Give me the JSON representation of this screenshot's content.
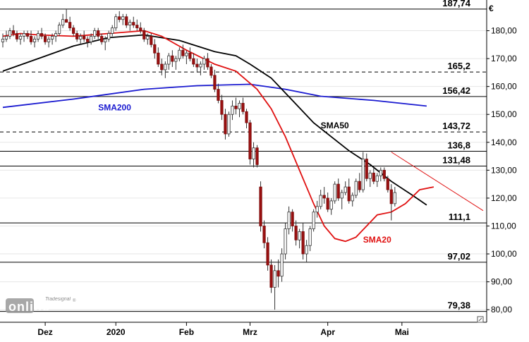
{
  "chart_data": {
    "type": "candlestick",
    "currency_label": "€",
    "y_axis": {
      "ticks": [
        {
          "v": 80,
          "label": "80,00"
        },
        {
          "v": 90,
          "label": "90,00"
        },
        {
          "v": 100,
          "label": "100,00"
        },
        {
          "v": 110,
          "label": "110,00"
        },
        {
          "v": 120,
          "label": "120,00"
        },
        {
          "v": 130,
          "label": "130,00"
        },
        {
          "v": 140,
          "label": "140,00"
        },
        {
          "v": 150,
          "label": "150,00"
        },
        {
          "v": 160,
          "label": "160,00"
        },
        {
          "v": 170,
          "label": "170,00"
        },
        {
          "v": 180,
          "label": "180,00"
        }
      ],
      "range": [
        75.5,
        191.0
      ]
    },
    "x_axis": {
      "labels": [
        {
          "t": 12,
          "label": "Dez"
        },
        {
          "t": 32,
          "label": "2020"
        },
        {
          "t": 52,
          "label": "Feb"
        },
        {
          "t": 70,
          "label": "Mrz"
        },
        {
          "t": 92,
          "label": "Apr"
        },
        {
          "t": 113,
          "label": "Mai"
        }
      ],
      "range": [
        0,
        136
      ]
    },
    "levels": [
      {
        "value": 187.74,
        "label": "187,74",
        "style": "solid"
      },
      {
        "value": 165.2,
        "label": "165,2",
        "style": "dashed"
      },
      {
        "value": 156.42,
        "label": "156,42",
        "style": "solid"
      },
      {
        "value": 143.72,
        "label": "143,72",
        "style": "dashed"
      },
      {
        "value": 136.8,
        "label": "136,8",
        "style": "solid"
      },
      {
        "value": 131.48,
        "label": "131,48",
        "style": "solid"
      },
      {
        "value": 111.1,
        "label": "111,1",
        "style": "solid"
      },
      {
        "value": 97.02,
        "label": "97,02",
        "style": "solid"
      },
      {
        "value": 79.38,
        "label": "79,38",
        "style": "solid"
      }
    ],
    "series": [
      {
        "name": "SMA200",
        "color": "#1a1ad0",
        "points": [
          [
            0,
            152.5
          ],
          [
            20,
            155.5
          ],
          [
            40,
            159
          ],
          [
            55,
            160.3
          ],
          [
            70,
            160.8
          ],
          [
            80,
            159
          ],
          [
            90,
            156.5
          ],
          [
            105,
            155
          ],
          [
            120,
            153
          ]
        ]
      },
      {
        "name": "SMA50",
        "color": "#000000",
        "points": [
          [
            0,
            165.5
          ],
          [
            10,
            170
          ],
          [
            20,
            174.5
          ],
          [
            30,
            177.5
          ],
          [
            40,
            178.5
          ],
          [
            50,
            176.5
          ],
          [
            60,
            172.5
          ],
          [
            66,
            171
          ],
          [
            70,
            168
          ],
          [
            76,
            163
          ],
          [
            82,
            155
          ],
          [
            88,
            147
          ],
          [
            93,
            142
          ],
          [
            98,
            137
          ],
          [
            104,
            132
          ],
          [
            110,
            126
          ],
          [
            116,
            121
          ],
          [
            120,
            117.5
          ]
        ]
      },
      {
        "name": "SMA20",
        "color": "#e01010",
        "points": [
          [
            0,
            178
          ],
          [
            5,
            179
          ],
          [
            10,
            178.5
          ],
          [
            20,
            178
          ],
          [
            30,
            179
          ],
          [
            40,
            180
          ],
          [
            45,
            178
          ],
          [
            52,
            173
          ],
          [
            60,
            168
          ],
          [
            66,
            165.5
          ],
          [
            72,
            159
          ],
          [
            76,
            152
          ],
          [
            80,
            142
          ],
          [
            84,
            130
          ],
          [
            88,
            118
          ],
          [
            91,
            110
          ],
          [
            94,
            105.5
          ],
          [
            97,
            104.5
          ],
          [
            100,
            106
          ],
          [
            103,
            110
          ],
          [
            106,
            114
          ],
          [
            110,
            115
          ],
          [
            114,
            118
          ],
          [
            118,
            123
          ],
          [
            122,
            124
          ]
        ]
      }
    ],
    "series_labels": [
      {
        "text": "SMA200",
        "t": 27,
        "v": 151.5,
        "color": "#1a1ad0"
      },
      {
        "text": "SMA50",
        "t": 90,
        "v": 145,
        "color": "#000000"
      },
      {
        "text": "SMA20",
        "t": 102,
        "v": 104,
        "color": "#e01010"
      }
    ],
    "trendline": {
      "color": "#e01010",
      "points": [
        [
          110,
          136.5
        ],
        [
          136,
          115.5
        ]
      ]
    },
    "candles": [
      [
        0,
        176,
        179,
        174,
        177
      ],
      [
        1,
        177,
        180,
        176,
        178
      ],
      [
        2,
        178,
        181,
        177,
        180
      ],
      [
        3,
        180,
        182,
        178,
        179
      ],
      [
        4,
        179,
        180,
        176,
        177
      ],
      [
        5,
        177,
        179,
        175,
        178
      ],
      [
        6,
        178,
        180,
        176,
        179
      ],
      [
        7,
        179,
        180,
        177,
        178
      ],
      [
        8,
        178,
        180,
        175,
        176
      ],
      [
        9,
        176,
        178,
        174,
        177
      ],
      [
        10,
        177,
        180,
        176,
        179
      ],
      [
        11,
        179,
        181,
        177,
        178
      ],
      [
        12,
        178,
        179,
        175,
        176
      ],
      [
        13,
        176,
        178,
        174,
        177
      ],
      [
        14,
        177,
        179,
        175,
        178
      ],
      [
        15,
        178,
        180,
        176,
        179
      ],
      [
        16,
        179,
        183,
        178,
        182
      ],
      [
        17,
        182,
        186,
        181,
        184
      ],
      [
        18,
        184,
        187.7,
        183,
        183
      ],
      [
        19,
        183,
        185,
        180,
        181
      ],
      [
        20,
        181,
        182,
        178,
        179
      ],
      [
        21,
        179,
        180,
        176,
        177
      ],
      [
        22,
        177,
        179,
        175,
        178
      ],
      [
        23,
        178,
        180,
        176,
        177
      ],
      [
        24,
        177,
        178,
        174,
        176
      ],
      [
        25,
        176,
        179,
        175,
        178
      ],
      [
        26,
        178,
        181,
        177,
        180
      ],
      [
        27,
        180,
        181,
        177,
        178
      ],
      [
        28,
        178,
        179,
        175,
        176
      ],
      [
        29,
        176,
        178,
        173,
        177
      ],
      [
        30,
        177,
        180,
        176,
        179
      ],
      [
        31,
        179,
        182,
        178,
        181
      ],
      [
        32,
        181,
        186,
        180,
        185
      ],
      [
        33,
        185,
        187,
        183,
        184
      ],
      [
        34,
        184,
        186,
        182,
        185
      ],
      [
        35,
        185,
        186,
        181,
        182
      ],
      [
        36,
        182,
        184,
        180,
        183
      ],
      [
        37,
        183,
        185,
        181,
        182
      ],
      [
        38,
        182,
        184,
        180,
        181
      ],
      [
        39,
        181,
        183,
        179,
        180
      ],
      [
        40,
        180,
        181,
        176,
        177
      ],
      [
        41,
        177,
        179,
        175,
        178
      ],
      [
        42,
        178,
        179,
        174,
        175
      ],
      [
        43,
        175,
        177,
        170,
        172
      ],
      [
        44,
        172,
        174,
        167,
        168
      ],
      [
        45,
        168,
        170,
        164,
        166
      ],
      [
        46,
        166,
        169,
        163,
        168
      ],
      [
        47,
        168,
        172,
        166,
        171
      ],
      [
        48,
        171,
        173,
        167,
        169
      ],
      [
        49,
        169,
        171,
        166,
        170
      ],
      [
        50,
        170,
        174,
        169,
        173
      ],
      [
        51,
        173,
        175,
        170,
        171
      ],
      [
        52,
        171,
        173,
        168,
        172
      ],
      [
        53,
        172,
        174,
        169,
        170
      ],
      [
        54,
        170,
        172,
        167,
        168
      ],
      [
        55,
        168,
        170,
        165,
        167
      ],
      [
        56,
        167,
        169,
        164,
        168
      ],
      [
        57,
        168,
        171,
        166,
        170
      ],
      [
        58,
        170,
        172,
        166,
        167
      ],
      [
        59,
        167,
        168,
        163,
        164
      ],
      [
        60,
        164,
        166,
        158,
        159
      ],
      [
        61,
        159,
        161,
        154,
        155
      ],
      [
        62,
        155,
        157,
        148,
        150
      ],
      [
        63,
        150,
        152,
        141,
        143
      ],
      [
        64,
        143,
        151,
        142,
        150
      ],
      [
        65,
        150,
        155,
        148,
        153
      ],
      [
        66,
        153,
        156,
        150,
        152
      ],
      [
        67,
        152,
        155,
        149,
        154
      ],
      [
        68,
        154,
        156,
        150,
        151
      ],
      [
        69,
        151,
        152,
        145,
        147
      ],
      [
        70,
        147,
        148,
        132,
        134
      ],
      [
        71,
        134,
        140,
        131,
        138
      ],
      [
        72,
        138,
        139,
        131,
        132
      ],
      [
        73,
        124,
        126,
        108,
        110
      ],
      [
        74,
        110,
        112,
        102,
        104
      ],
      [
        75,
        104,
        106,
        94,
        96
      ],
      [
        76,
        96,
        98,
        86,
        88
      ],
      [
        77,
        88,
        96,
        80,
        94
      ],
      [
        78,
        94,
        98,
        88,
        92
      ],
      [
        79,
        92,
        102,
        90,
        100
      ],
      [
        80,
        100,
        111,
        98,
        109
      ],
      [
        81,
        109,
        117,
        107,
        115
      ],
      [
        82,
        115,
        116,
        108,
        110
      ],
      [
        83,
        110,
        112,
        103,
        105
      ],
      [
        84,
        105,
        109,
        102,
        108
      ],
      [
        85,
        108,
        111,
        98,
        100
      ],
      [
        86,
        100,
        105,
        97,
        103
      ],
      [
        87,
        103,
        110,
        101,
        109
      ],
      [
        88,
        109,
        116,
        108,
        115
      ],
      [
        89,
        115,
        119,
        113,
        117
      ],
      [
        90,
        117,
        123,
        116,
        121
      ],
      [
        91,
        121,
        124,
        118,
        120
      ],
      [
        92,
        120,
        122,
        115,
        116
      ],
      [
        93,
        116,
        120,
        114,
        119
      ],
      [
        94,
        119,
        126,
        118,
        125
      ],
      [
        95,
        125,
        127,
        119,
        120
      ],
      [
        96,
        120,
        123,
        116,
        122
      ],
      [
        97,
        122,
        126,
        121,
        124
      ],
      [
        98,
        124,
        127,
        118,
        119
      ],
      [
        99,
        119,
        122,
        117,
        121
      ],
      [
        100,
        121,
        127,
        120,
        126
      ],
      [
        101,
        126,
        129,
        122,
        123
      ],
      [
        102,
        123,
        136.5,
        122,
        134
      ],
      [
        103,
        134,
        136,
        126,
        127
      ],
      [
        104,
        127,
        130,
        124,
        129
      ],
      [
        105,
        129,
        131,
        125,
        126
      ],
      [
        106,
        126,
        129,
        124,
        128
      ],
      [
        107,
        128,
        131,
        126,
        130
      ],
      [
        108,
        130,
        131,
        126,
        127
      ],
      [
        109,
        127,
        128,
        122,
        123
      ],
      [
        110,
        123,
        125,
        112,
        118
      ],
      [
        111,
        118,
        124,
        117,
        122
      ]
    ]
  },
  "branding": {
    "logo_script": "Tradesignal",
    "logo_main": "online",
    "registered": "®"
  }
}
